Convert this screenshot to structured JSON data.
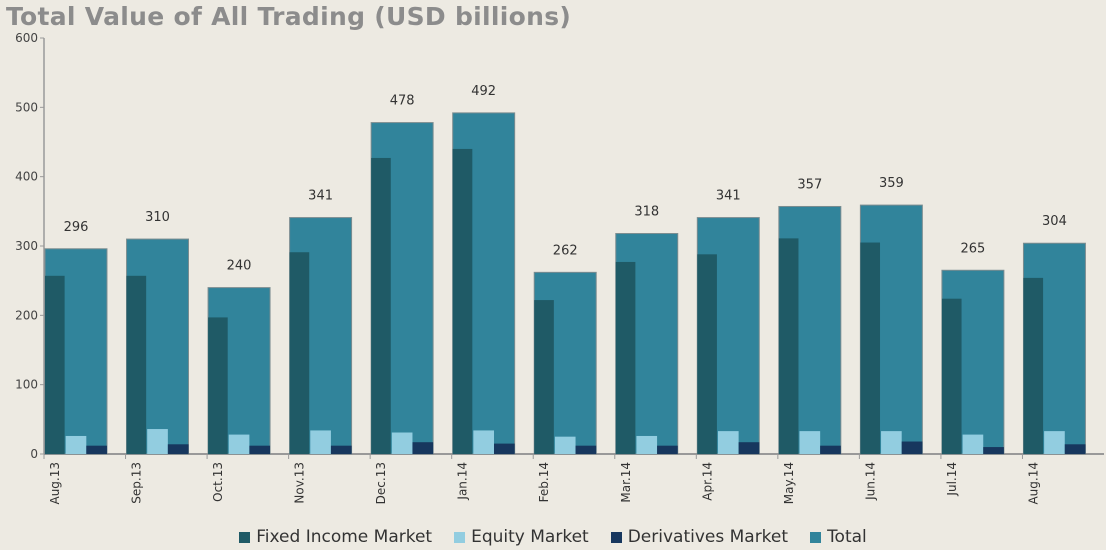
{
  "chart_data": {
    "type": "bar",
    "title": "Total Value of All Trading (USD billions)",
    "xlabel": "",
    "ylabel": "",
    "ylim": [
      0,
      600
    ],
    "yticks": [
      0,
      100,
      200,
      300,
      400,
      500,
      600
    ],
    "grid": false,
    "legend_position": "bottom",
    "categories": [
      "Aug.13",
      "Sep.13",
      "Oct.13",
      "Nov.13",
      "Dec.13",
      "Jan.14",
      "Feb.14",
      "Mar.14",
      "Apr.14",
      "May.14",
      "Jun.14",
      "Jul.14",
      "Aug.14"
    ],
    "series": [
      {
        "name": "Fixed Income Market",
        "color": "#1f5a66",
        "values": [
          257,
          257,
          197,
          291,
          427,
          440,
          222,
          277,
          288,
          311,
          305,
          224,
          254
        ]
      },
      {
        "name": "Equity Market",
        "color": "#92cde0",
        "values": [
          26,
          36,
          28,
          34,
          31,
          34,
          25,
          26,
          33,
          33,
          33,
          28,
          33
        ]
      },
      {
        "name": "Derivatives Market",
        "color": "#17375e",
        "values": [
          12,
          14,
          12,
          12,
          17,
          15,
          12,
          12,
          17,
          12,
          18,
          10,
          14
        ]
      },
      {
        "name": "Total",
        "color": "#31849b",
        "values": [
          296,
          310,
          240,
          341,
          478,
          492,
          262,
          318,
          341,
          357,
          359,
          265,
          304
        ]
      }
    ]
  }
}
